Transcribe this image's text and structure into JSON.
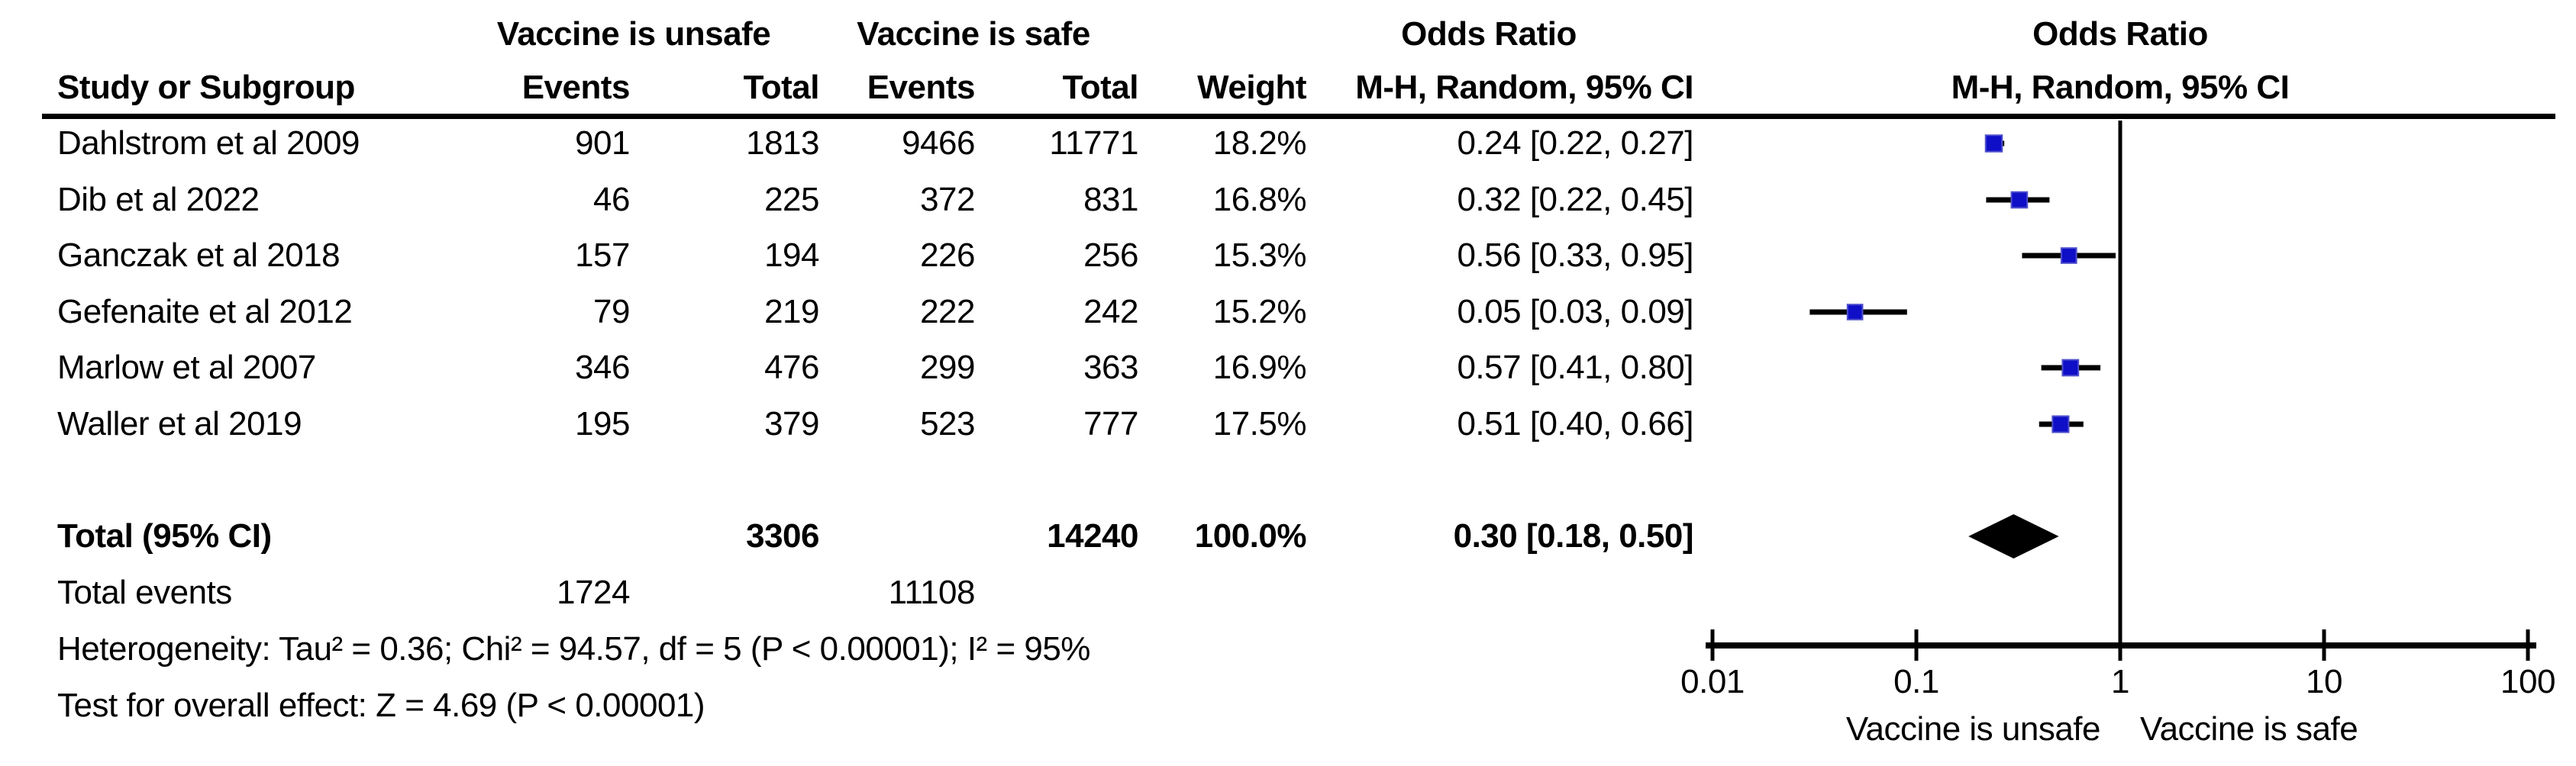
{
  "table": {
    "headers": {
      "group1": "Vaccine is unsafe",
      "group2": "Vaccine is safe",
      "study": "Study or Subgroup",
      "events": "Events",
      "total": "Total",
      "weight": "Weight",
      "odds_ratio": "Odds Ratio",
      "method": "M-H, Random, 95% CI"
    },
    "rows": [
      {
        "study": "Dahlstrom et al 2009",
        "events1": "901",
        "total1": "1813",
        "events2": "9466",
        "total2": "11771",
        "weight": "18.2%",
        "ci_text": "0.24 [0.22, 0.27]"
      },
      {
        "study": "Dib et al 2022",
        "events1": "46",
        "total1": "225",
        "events2": "372",
        "total2": "831",
        "weight": "16.8%",
        "ci_text": "0.32 [0.22, 0.45]"
      },
      {
        "study": "Ganczak et al 2018",
        "events1": "157",
        "total1": "194",
        "events2": "226",
        "total2": "256",
        "weight": "15.3%",
        "ci_text": "0.56 [0.33, 0.95]"
      },
      {
        "study": "Gefenaite et al 2012",
        "events1": "79",
        "total1": "219",
        "events2": "222",
        "total2": "242",
        "weight": "15.2%",
        "ci_text": "0.05 [0.03, 0.09]"
      },
      {
        "study": "Marlow et al 2007",
        "events1": "346",
        "total1": "476",
        "events2": "299",
        "total2": "363",
        "weight": "16.9%",
        "ci_text": "0.57 [0.41, 0.80]"
      },
      {
        "study": "Waller et al 2019",
        "events1": "195",
        "total1": "379",
        "events2": "523",
        "total2": "777",
        "weight": "17.5%",
        "ci_text": "0.51 [0.40, 0.66]"
      }
    ],
    "total_row": {
      "label": "Total (95% CI)",
      "total1": "3306",
      "total2": "14240",
      "weight": "100.0%",
      "ci_text": "0.30 [0.18, 0.50]"
    },
    "total_events": {
      "label": "Total events",
      "events1": "1724",
      "events2": "11108"
    },
    "heterogeneity": "Heterogeneity: Tau² = 0.36; Chi² = 94.57, df = 5 (P < 0.00001); I² = 95%",
    "overall_effect": "Test for overall effect: Z = 4.69 (P < 0.00001)"
  },
  "chart_data": {
    "type": "forest",
    "x_scale": "log",
    "x_range": [
      0.01,
      100
    ],
    "x_ticks": [
      "0.01",
      "0.1",
      "1",
      "10",
      "100"
    ],
    "x_tick_values": [
      0.01,
      0.1,
      1,
      10,
      100
    ],
    "no_effect_value": 1,
    "favours_left": "Vaccine is unsafe",
    "favours_right": "Vaccine is safe",
    "effect_label": "Odds Ratio",
    "method_label": "M-H, Random, 95% CI",
    "studies": [
      {
        "name": "Dahlstrom et al 2009",
        "or": 0.24,
        "ci_low": 0.22,
        "ci_high": 0.27,
        "weight_pct": 18.2
      },
      {
        "name": "Dib et al 2022",
        "or": 0.32,
        "ci_low": 0.22,
        "ci_high": 0.45,
        "weight_pct": 16.8
      },
      {
        "name": "Ganczak et al 2018",
        "or": 0.56,
        "ci_low": 0.33,
        "ci_high": 0.95,
        "weight_pct": 15.3
      },
      {
        "name": "Gefenaite et al 2012",
        "or": 0.05,
        "ci_low": 0.03,
        "ci_high": 0.09,
        "weight_pct": 15.2
      },
      {
        "name": "Marlow et al 2007",
        "or": 0.57,
        "ci_low": 0.41,
        "ci_high": 0.8,
        "weight_pct": 16.9
      },
      {
        "name": "Waller et al 2019",
        "or": 0.51,
        "ci_low": 0.4,
        "ci_high": 0.66,
        "weight_pct": 17.5
      }
    ],
    "total": {
      "or": 0.3,
      "ci_low": 0.18,
      "ci_high": 0.5,
      "weight_pct": 100.0
    },
    "marker_color": "#0f0fc8",
    "marker_border_color": "#5050cc",
    "ci_color": "#000000",
    "diamond_color": "#000000",
    "axis_color": "#000000"
  }
}
